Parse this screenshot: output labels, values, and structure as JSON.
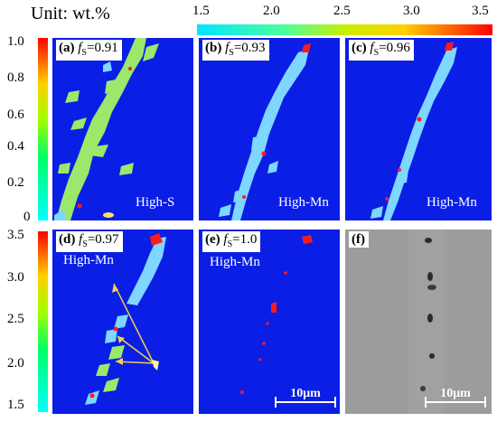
{
  "figure": {
    "unit_label": "Unit: wt.%",
    "colorbar_horizontal": {
      "ticks": [
        "1.5",
        "2.0",
        "2.5",
        "3.0",
        "3.5"
      ]
    },
    "colorbar_top_rows": {
      "ticks": [
        "1.0",
        "0.8",
        "0.6",
        "0.4",
        "0.2",
        "0"
      ]
    },
    "colorbar_bottom_rows": {
      "ticks": [
        "3.5",
        "3.0",
        "2.5",
        "2.0",
        "1.5"
      ]
    },
    "panels": [
      {
        "letter": "(a)",
        "fs_symbol": "f",
        "fs_sub": "S",
        "fs_value": "=0.91",
        "region": "High-S"
      },
      {
        "letter": "(b)",
        "fs_symbol": "f",
        "fs_sub": "S",
        "fs_value": "=0.93",
        "region": "High-Mn"
      },
      {
        "letter": "(c)",
        "fs_symbol": "f",
        "fs_sub": "S",
        "fs_value": "=0.96",
        "region": "High-Mn"
      },
      {
        "letter": "(d)",
        "fs_symbol": "f",
        "fs_sub": "S",
        "fs_value": "=0.97",
        "region": "High-Mn"
      },
      {
        "letter": "(e)",
        "fs_symbol": "f",
        "fs_sub": "S",
        "fs_value": "=1.0",
        "region": "High-Mn",
        "scale_bar": "10μm"
      },
      {
        "letter": "(f)",
        "scale_bar": "10μm"
      }
    ],
    "colors": {
      "matrix": "#0a1ee6",
      "segregation_low": "#7fd6ff",
      "segregation_s": "#9be86a",
      "inclusion": "#ff1a1a"
    }
  }
}
